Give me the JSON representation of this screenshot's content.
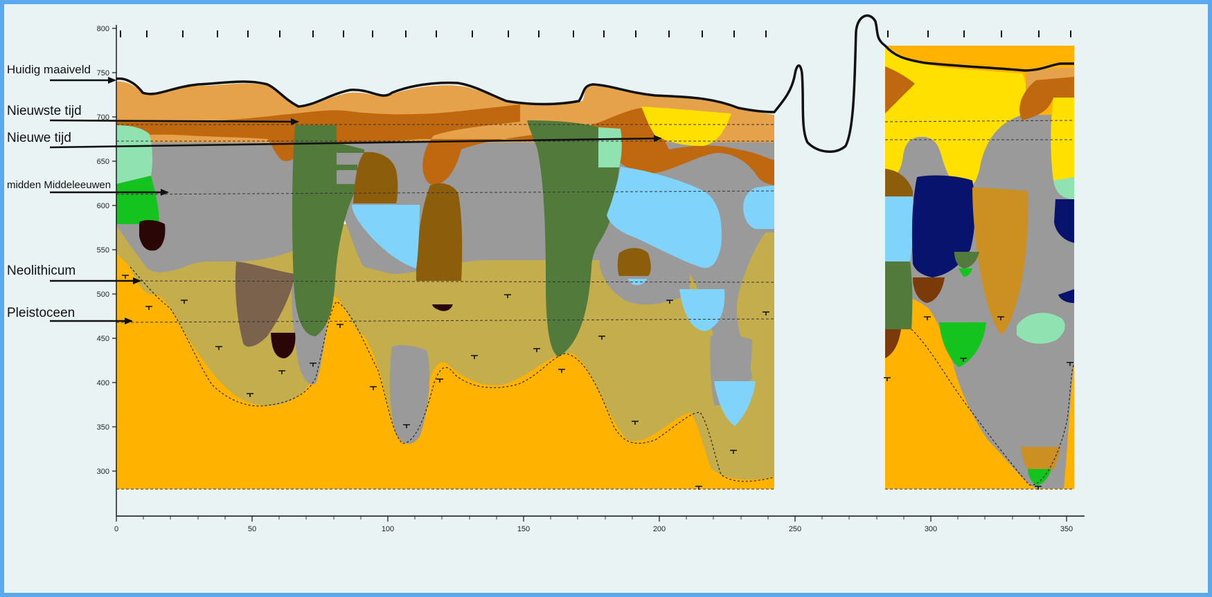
{
  "period_labels": [
    {
      "key": "huidig",
      "text": "Huidig maaiveld"
    },
    {
      "key": "nieuwste",
      "text": "Nieuwste tijd"
    },
    {
      "key": "nieuwe",
      "text": "Nieuwe tijd"
    },
    {
      "key": "midden",
      "text": "midden Middeleeuwen"
    },
    {
      "key": "neolithicum",
      "text": "Neolithicum"
    },
    {
      "key": "pleistoceen",
      "text": "Pleistoceen"
    }
  ],
  "axes": {
    "x_ticks": [
      "0",
      "50",
      "100",
      "150",
      "200",
      "250",
      "300",
      "350"
    ],
    "y_ticks": [
      "800",
      "750",
      "700",
      "650",
      "600",
      "550",
      "500",
      "450",
      "400",
      "350",
      "300"
    ]
  },
  "colors": {
    "background": "#e9f3f3",
    "border": "#5aa9ee",
    "topsoil_light": "#e5a24a",
    "topsoil_dark": "#c0680f",
    "yellow_sand": "#ffe000",
    "grey_fill": "#9a9a9a",
    "dark_green": "#527a3a",
    "light_green": "#90e2b0",
    "bright_green": "#14c31e",
    "light_blue": "#80d4fb",
    "navy": "#08136e",
    "brown": "#8c5d0a",
    "dark_brown": "#2a0606",
    "olive_sand": "#c4ad4c",
    "orange_pleistocene": "#ffb300",
    "mid_brown": "#7a624c",
    "ochre": "#cc8f22"
  }
}
